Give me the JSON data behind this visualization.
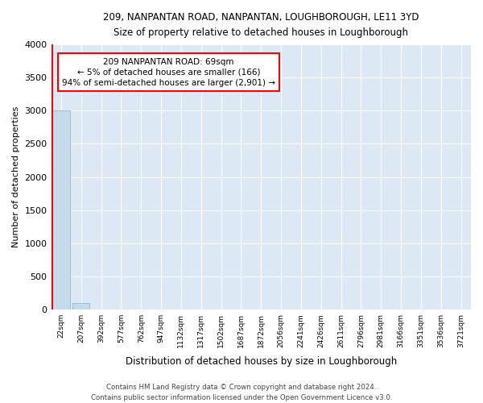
{
  "title": "209, NANPANTAN ROAD, NANPANTAN, LOUGHBOROUGH, LE11 3YD",
  "subtitle": "Size of property relative to detached houses in Loughborough",
  "xlabel": "Distribution of detached houses by size in Loughborough",
  "ylabel": "Number of detached properties",
  "bar_color": "#c5daea",
  "bar_edge_color": "#7bafd4",
  "plot_bg_color": "#dce9f5",
  "annotation_text": "209 NANPANTAN ROAD: 69sqm\n← 5% of detached houses are smaller (166)\n94% of semi-detached houses are larger (2,901) →",
  "categories": [
    "22sqm",
    "207sqm",
    "392sqm",
    "577sqm",
    "762sqm",
    "947sqm",
    "1132sqm",
    "1317sqm",
    "1502sqm",
    "1687sqm",
    "1872sqm",
    "2056sqm",
    "2241sqm",
    "2426sqm",
    "2611sqm",
    "2796sqm",
    "2981sqm",
    "3166sqm",
    "3351sqm",
    "3536sqm",
    "3721sqm"
  ],
  "values": [
    3000,
    100,
    0,
    0,
    0,
    0,
    0,
    0,
    0,
    0,
    0,
    0,
    0,
    0,
    0,
    0,
    0,
    0,
    0,
    0,
    0
  ],
  "ylim": [
    0,
    4000
  ],
  "yticks": [
    0,
    500,
    1000,
    1500,
    2000,
    2500,
    3000,
    3500,
    4000
  ],
  "footer": "Contains HM Land Registry data © Crown copyright and database right 2024.\nContains public sector information licensed under the Open Government Licence v3.0.",
  "figsize": [
    6.0,
    5.0
  ],
  "dpi": 100
}
